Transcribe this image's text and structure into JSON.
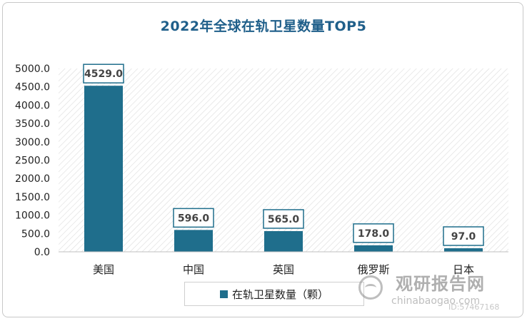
{
  "chart_data": {
    "type": "bar",
    "title": "2022年全球在轨卫星数量TOP5",
    "categories": [
      "美国",
      "中国",
      "英国",
      "俄罗斯",
      "日本"
    ],
    "series": [
      {
        "name": "在轨卫星数量（颗）",
        "values": [
          4529.0,
          596.0,
          565.0,
          178.0,
          97.0
        ]
      }
    ],
    "data_labels": [
      "4529.0",
      "596.0",
      "565.0",
      "178.0",
      "97.0"
    ],
    "yticks": [
      "0.0",
      "500.0",
      "1000.0",
      "1500.0",
      "2000.0",
      "2500.0",
      "3000.0",
      "3500.0",
      "4000.0",
      "4500.0",
      "5000.0"
    ],
    "ylim": [
      0,
      5000
    ],
    "grid": false,
    "legend_position": "bottom",
    "bar_color": "#1f6e8c",
    "title_color": "#1f5f8a"
  },
  "watermark": {
    "brand": "观研报告网",
    "url": "chinabaogao.com",
    "id": "ID:57467168"
  }
}
